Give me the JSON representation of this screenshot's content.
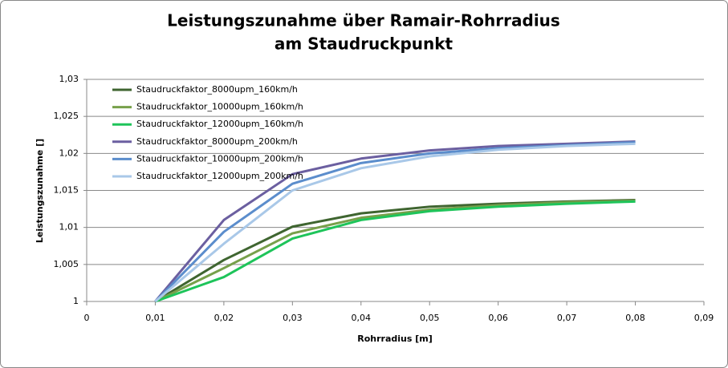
{
  "chart_data": {
    "type": "line",
    "title": [
      "Leistungszunahme über Ramair-Rohrradius",
      "am Staudruckpunkt"
    ],
    "x_label": "Rohrradius [m]",
    "y_label": "Leistungszunahme []",
    "x": [
      0.01,
      0.02,
      0.03,
      0.04,
      0.05,
      0.06,
      0.07,
      0.08
    ],
    "series": [
      {
        "name": "Staudruckfaktor_8000upm_160km/h",
        "color": "#3f6530",
        "values": [
          1,
          1.0056,
          1.0101,
          1.0119,
          1.0128,
          1.0132,
          1.0135,
          1.0137
        ]
      },
      {
        "name": "Staudruckfaktor_10000upm_160km/h",
        "color": "#77a04a",
        "values": [
          1,
          1.0045,
          1.0092,
          1.0113,
          1.0124,
          1.013,
          1.0134,
          1.0136
        ]
      },
      {
        "name": "Staudruckfaktor_12000upm_160km/h",
        "color": "#1ec45a",
        "values": [
          1,
          1.0033,
          1.0085,
          1.011,
          1.0122,
          1.0128,
          1.0132,
          1.0135
        ]
      },
      {
        "name": "Staudruckfaktor_8000upm_200km/h",
        "color": "#6b5fa0",
        "values": [
          1,
          1.011,
          1.0172,
          1.0193,
          1.0204,
          1.021,
          1.0213,
          1.0216
        ]
      },
      {
        "name": "Staudruckfaktor_10000upm_200km/h",
        "color": "#5b8dcc",
        "values": [
          1,
          1.0094,
          1.0159,
          1.0187,
          1.02,
          1.0207,
          1.0211,
          1.0215
        ]
      },
      {
        "name": "Staudruckfaktor_12000upm_200km/h",
        "color": "#a9c8e8",
        "values": [
          1,
          1.0078,
          1.015,
          1.018,
          1.0196,
          1.0205,
          1.021,
          1.0213
        ]
      }
    ],
    "xlim": [
      0,
      0.09
    ],
    "xticks": [
      0,
      {
        "value": 0.01,
        "label": "0,01"
      },
      {
        "value": 0.02,
        "label": "0,02"
      },
      {
        "value": 0.03,
        "label": "0,03"
      },
      {
        "value": 0.04,
        "label": "0,04"
      },
      {
        "value": 0.05,
        "label": "0,05"
      },
      {
        "value": 0.06,
        "label": "0,06"
      },
      {
        "value": 0.07,
        "label": "0,07"
      },
      {
        "value": 0.08,
        "label": "0,08"
      },
      {
        "value": 0.09,
        "label": "0,09"
      }
    ],
    "ylim": [
      1,
      1.03
    ],
    "yticks": [
      1,
      {
        "value": 1.005,
        "label": "1,005"
      },
      {
        "value": 1.01,
        "label": "1,01"
      },
      {
        "value": 1.015,
        "label": "1,015"
      },
      {
        "value": 1.02,
        "label": "1,02"
      },
      {
        "value": 1.025,
        "label": "1,025"
      },
      {
        "value": 1.03,
        "label": "1,03"
      }
    ],
    "grid": true,
    "legend": "top-left"
  }
}
